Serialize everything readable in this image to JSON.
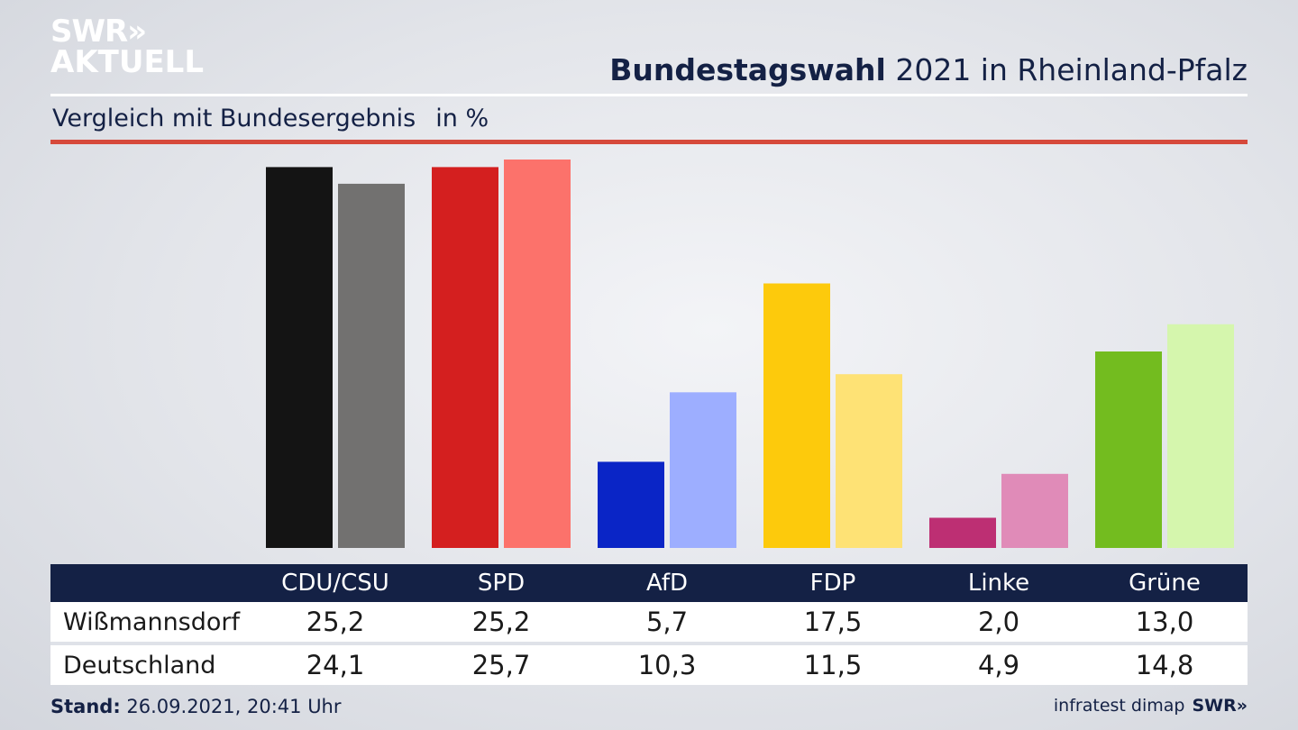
{
  "brand": {
    "logo_line1": "SWR»",
    "logo_line2": "AKTUELL",
    "footer_logo": "SWR»"
  },
  "title": {
    "bold": "Bundestagswahl",
    "rest": " 2021 in Rheinland-Pfalz"
  },
  "subtitle": "Vergleich mit Bundesergebnis",
  "unit": "in %",
  "chart_data": {
    "type": "bar",
    "categories": [
      "CDU/CSU",
      "SPD",
      "AfD",
      "FDP",
      "Linke",
      "Grüne"
    ],
    "series": [
      {
        "name": "Wißmannsdorf",
        "values": [
          25.2,
          25.2,
          5.7,
          17.5,
          2.0,
          13.0
        ],
        "display": [
          "25,2",
          "25,2",
          "5,7",
          "17,5",
          "2,0",
          "13,0"
        ]
      },
      {
        "name": "Deutschland",
        "values": [
          24.1,
          25.7,
          10.3,
          11.5,
          4.9,
          14.8
        ],
        "display": [
          "24,1",
          "25,7",
          "10,3",
          "11,5",
          "4,9",
          "14,8"
        ]
      }
    ],
    "colors": {
      "primary": [
        "#141414",
        "#d41f1f",
        "#0a25c6",
        "#fdca0c",
        "#bd2f73",
        "#73bc1f"
      ],
      "secondary": [
        "#727170",
        "#fc726b",
        "#9daeff",
        "#fee275",
        "#e08bb8",
        "#d5f6ad"
      ]
    },
    "ylim": [
      0,
      26
    ]
  },
  "footer": {
    "stand_label": "Stand:",
    "stand_value": "26.09.2021, 20:41 Uhr",
    "source": "infratest dimap"
  }
}
